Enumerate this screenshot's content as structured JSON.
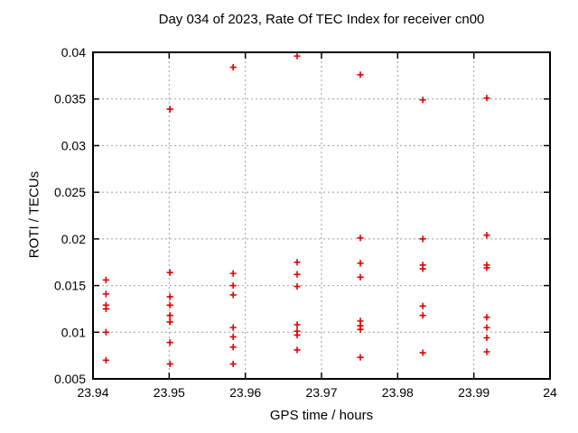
{
  "chart_data": {
    "type": "scatter",
    "title": "Day 034 of 2023, Rate Of TEC Index for receiver cn00",
    "xlabel": "GPS time / hours",
    "ylabel": "ROTI / TECUs",
    "xlim": [
      23.94,
      24
    ],
    "ylim": [
      0.005,
      0.04
    ],
    "xtick_values": [
      23.94,
      23.95,
      23.96,
      23.97,
      23.98,
      23.99,
      24
    ],
    "xtick_labels": [
      "23.94",
      "23.95",
      "23.96",
      "23.97",
      "23.98",
      "23.99",
      "24"
    ],
    "ytick_values": [
      0.005,
      0.01,
      0.015,
      0.02,
      0.025,
      0.03,
      0.035,
      0.04
    ],
    "ytick_labels": [
      "0.005",
      "0.01",
      "0.015",
      "0.02",
      "0.025",
      "0.03",
      "0.035",
      "0.04"
    ],
    "grid": true,
    "legend": "none",
    "marker": "plus",
    "colors": {
      "marker": "#e00000",
      "grid": "#9e9e9e",
      "axis": "#000000",
      "background": "#ffffff"
    },
    "series": [
      {
        "name": "ROTI",
        "points": [
          [
            23.9417,
            0.0156
          ],
          [
            23.9417,
            0.0141
          ],
          [
            23.9417,
            0.0129
          ],
          [
            23.9417,
            0.0125
          ],
          [
            23.9417,
            0.01
          ],
          [
            23.9417,
            0.007
          ],
          [
            23.9501,
            0.0339
          ],
          [
            23.9501,
            0.0164
          ],
          [
            23.9501,
            0.0138
          ],
          [
            23.9501,
            0.0129
          ],
          [
            23.9501,
            0.0118
          ],
          [
            23.9501,
            0.0111
          ],
          [
            23.9501,
            0.0089
          ],
          [
            23.9501,
            0.0066
          ],
          [
            23.9584,
            0.0384
          ],
          [
            23.9584,
            0.0163
          ],
          [
            23.9584,
            0.015
          ],
          [
            23.9584,
            0.014
          ],
          [
            23.9584,
            0.0105
          ],
          [
            23.9584,
            0.0095
          ],
          [
            23.9584,
            0.0084
          ],
          [
            23.9584,
            0.0066
          ],
          [
            23.9668,
            0.0396
          ],
          [
            23.9668,
            0.0175
          ],
          [
            23.9668,
            0.0162
          ],
          [
            23.9668,
            0.0149
          ],
          [
            23.9668,
            0.0108
          ],
          [
            23.9668,
            0.0101
          ],
          [
            23.9668,
            0.0097
          ],
          [
            23.9668,
            0.0081
          ],
          [
            23.9751,
            0.0376
          ],
          [
            23.9751,
            0.0201
          ],
          [
            23.9751,
            0.0174
          ],
          [
            23.9751,
            0.0159
          ],
          [
            23.9751,
            0.0112
          ],
          [
            23.9751,
            0.0107
          ],
          [
            23.9751,
            0.0103
          ],
          [
            23.9751,
            0.0073
          ],
          [
            23.9833,
            0.0349
          ],
          [
            23.9833,
            0.02
          ],
          [
            23.9833,
            0.0172
          ],
          [
            23.9833,
            0.0168
          ],
          [
            23.9833,
            0.0128
          ],
          [
            23.9833,
            0.0118
          ],
          [
            23.9833,
            0.0078
          ],
          [
            23.9917,
            0.0351
          ],
          [
            23.9917,
            0.0204
          ],
          [
            23.9917,
            0.0172
          ],
          [
            23.9917,
            0.0169
          ],
          [
            23.9917,
            0.0116
          ],
          [
            23.9917,
            0.0105
          ],
          [
            23.9917,
            0.0094
          ],
          [
            23.9917,
            0.0079
          ]
        ]
      }
    ]
  }
}
